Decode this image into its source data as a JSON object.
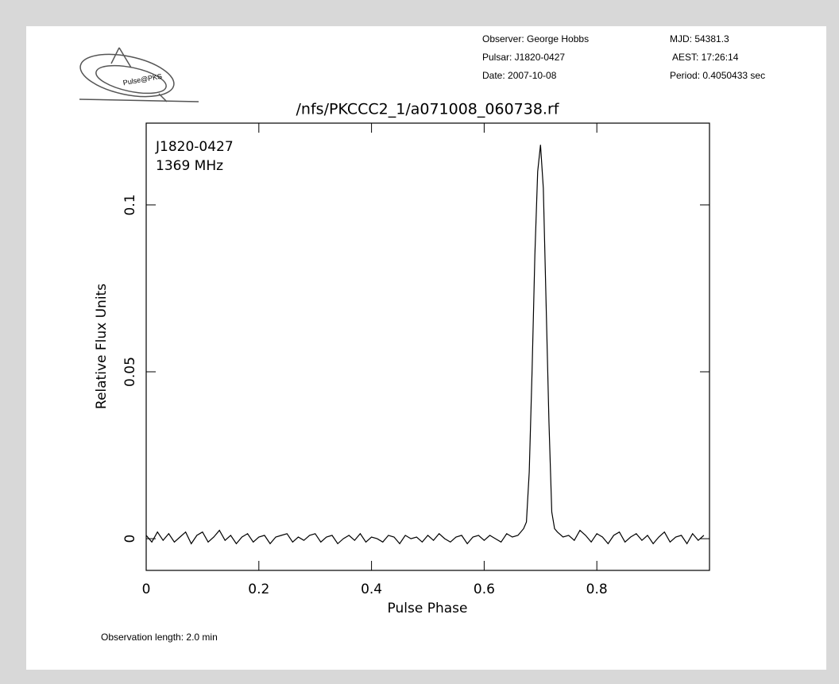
{
  "header": {
    "logo": "Pulse@PKS",
    "observer": "Observer: George Hobbs",
    "pulsar": "Pulsar: J1820-0427",
    "date": "Date: 2007-10-08",
    "mjd": "MJD: 54381.3",
    "aest": "AEST: 17:26:14",
    "period": "Period: 0.4050433 sec"
  },
  "chart_data": {
    "type": "line",
    "title": "/nfs/PKCCC2_1/a071008_060738.rf",
    "annotations": [
      "J1820-0427",
      "1369 MHz"
    ],
    "x_label": "Pulse Phase",
    "y_label": "Relative Flux Units",
    "color": "#000000",
    "xlim": [
      0,
      1
    ],
    "ylim": [
      -0.0095,
      0.1245
    ],
    "xticks": [
      0,
      0.2,
      0.4,
      0.6,
      0.8
    ],
    "yticks": [
      0,
      0.05,
      0.1
    ],
    "x": [
      0,
      0.01,
      0.02,
      0.03,
      0.04,
      0.05,
      0.06,
      0.07,
      0.08,
      0.09,
      0.1,
      0.11,
      0.12,
      0.13,
      0.14,
      0.15,
      0.16,
      0.17,
      0.18,
      0.19,
      0.2,
      0.21,
      0.22,
      0.23,
      0.24,
      0.25,
      0.26,
      0.27,
      0.28,
      0.29,
      0.3,
      0.31,
      0.32,
      0.33,
      0.34,
      0.35,
      0.36,
      0.37,
      0.38,
      0.39,
      0.4,
      0.41,
      0.42,
      0.43,
      0.44,
      0.45,
      0.46,
      0.47,
      0.48,
      0.49,
      0.5,
      0.51,
      0.52,
      0.53,
      0.54,
      0.55,
      0.56,
      0.57,
      0.58,
      0.59,
      0.6,
      0.61,
      0.62,
      0.63,
      0.64,
      0.65,
      0.66,
      0.67,
      0.675,
      0.68,
      0.685,
      0.69,
      0.695,
      0.7,
      0.705,
      0.71,
      0.715,
      0.72,
      0.725,
      0.73,
      0.74,
      0.75,
      0.76,
      0.77,
      0.78,
      0.79,
      0.8,
      0.81,
      0.82,
      0.83,
      0.84,
      0.85,
      0.86,
      0.87,
      0.88,
      0.89,
      0.9,
      0.91,
      0.92,
      0.93,
      0.94,
      0.95,
      0.96,
      0.97,
      0.98,
      0.99
    ],
    "values": [
      0.001,
      -0.001,
      0.002,
      -0.0005,
      0.0015,
      -0.001,
      0.0005,
      0.002,
      -0.0015,
      0.001,
      0.002,
      -0.001,
      0.0005,
      0.0025,
      -0.0005,
      0.001,
      -0.0015,
      0.0005,
      0.0015,
      -0.001,
      0.0005,
      0.001,
      -0.0015,
      0.0005,
      0.001,
      0.0015,
      -0.001,
      0.0005,
      -0.0005,
      0.001,
      0.0015,
      -0.001,
      0.0005,
      0.001,
      -0.0015,
      0,
      0.001,
      -0.0005,
      0.0015,
      -0.001,
      0.0005,
      0,
      -0.001,
      0.001,
      0.0005,
      -0.0015,
      0.001,
      0,
      0.0005,
      -0.001,
      0.001,
      -0.0005,
      0.0015,
      0,
      -0.001,
      0.0005,
      0.001,
      -0.0015,
      0.0005,
      0.001,
      -0.0005,
      0.001,
      0,
      -0.001,
      0.0015,
      0.0005,
      0.001,
      0.003,
      0.005,
      0.02,
      0.05,
      0.085,
      0.11,
      0.118,
      0.105,
      0.07,
      0.035,
      0.008,
      0.003,
      0.002,
      0.0005,
      0.001,
      -0.0005,
      0.0025,
      0.001,
      -0.001,
      0.0015,
      0.0005,
      -0.0015,
      0.001,
      0.002,
      -0.001,
      0.0005,
      0.0015,
      -0.0005,
      0.001,
      -0.0015,
      0.0005,
      0.002,
      -0.001,
      0.0005,
      0.001,
      -0.0015,
      0.0015,
      -0.0005,
      0.001
    ]
  },
  "footer": "Observation length: 2.0 min"
}
